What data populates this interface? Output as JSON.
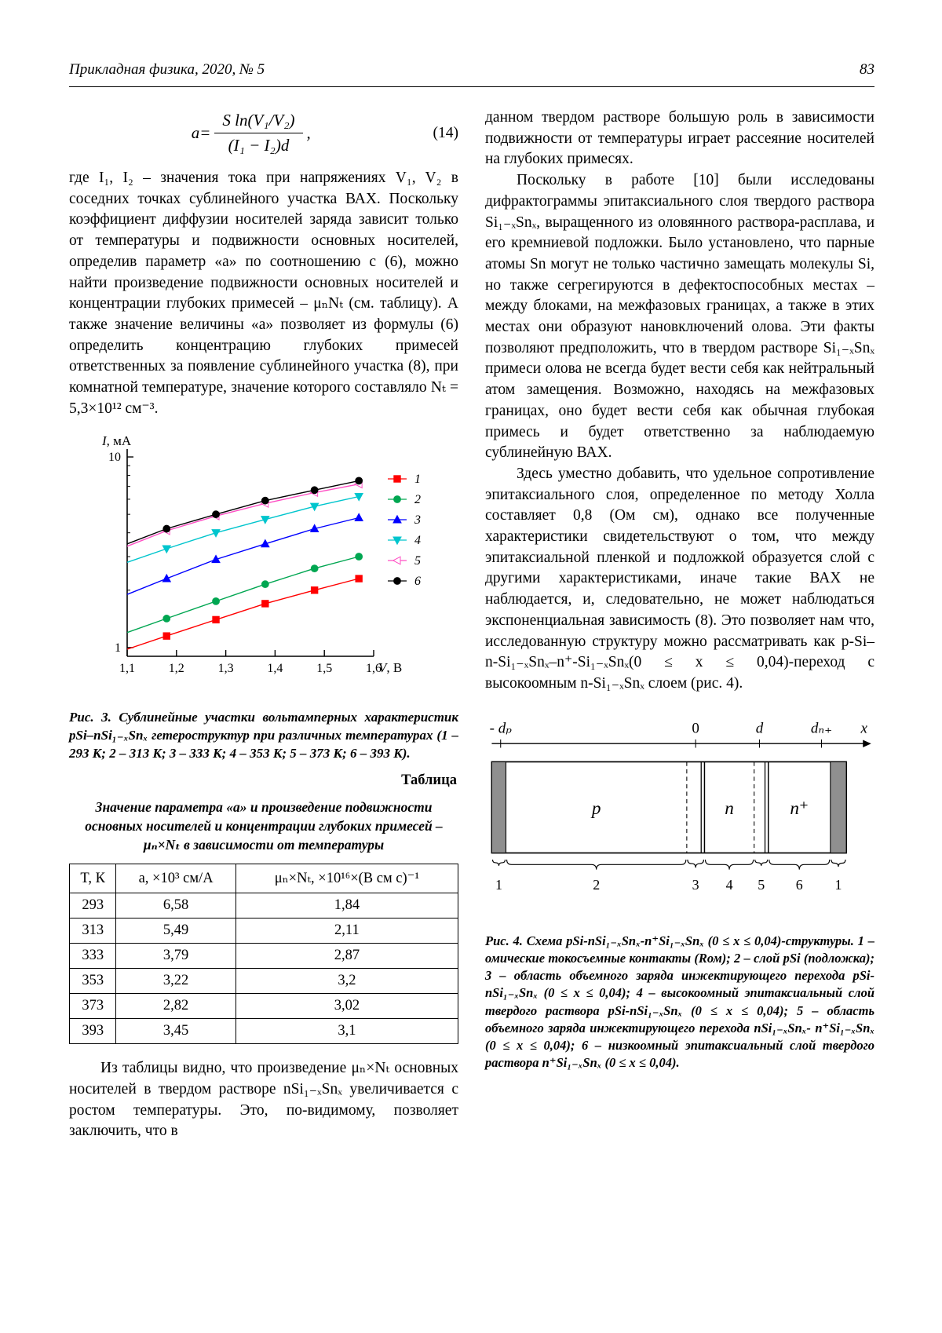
{
  "header": {
    "journal": "Прикладная физика, 2020, № 5",
    "page": "83"
  },
  "equation": {
    "lhs": "a",
    "eq": " = ",
    "numerator": "S ln(V₁/V₂)",
    "denominator": "(I₁ − I₂)d",
    "comma": ",",
    "number": "(14)"
  },
  "left_column": {
    "p1": "где I₁, I₂ – значения тока при напряжениях V₁, V₂ в соседних точках сублинейного участка ВАХ. Поскольку коэффициент диффузии носителей заряда зависит только от температуры и подвижности основных носителей, определив параметр «а» по соотношению с (6), можно найти произведение подвижности основных носителей и концентрации глубоких примесей – μₙNₜ (см. таблицу). А также значение величины «а» позволяет из формулы (6) определить концентрацию глубоких примесей ответственных за появление сублинейного участка (8), при комнатной температуре, значение которого составляло Nₜ = 5,3×10¹² см⁻³.",
    "fig3_caption": "Рис. 3. Сублинейные участки вольтамперных характеристик pSi–nSi₁₋ₓSnₓ гетероструктур при различных температурах (1 – 293 К; 2 – 313 К; 3 – 333 К; 4 – 353 К; 5 – 373 К; 6 – 393 К).",
    "table_label": "Таблица",
    "table_caption": "Значение параметра «а» и произведение подвижности основных носителей и концентрации глубоких примесей – μₙ×Nₜ в зависимости от температуры",
    "table": {
      "headers": [
        "T, К",
        "a, ×10³ см/А",
        "μₙ×Nₜ, ×10¹⁶×(В см с)⁻¹"
      ],
      "rows": [
        [
          "293",
          "6,58",
          "1,84"
        ],
        [
          "313",
          "5,49",
          "2,11"
        ],
        [
          "333",
          "3,79",
          "2,87"
        ],
        [
          "353",
          "3,22",
          "3,2"
        ],
        [
          "373",
          "2,82",
          "3,02"
        ],
        [
          "393",
          "3,45",
          "3,1"
        ]
      ]
    },
    "p2": "Из таблицы видно, что произведение μₙ×Nₜ основных носителей в твердом растворе nSi₁₋ₓSnₓ увеличивается с ростом температуры. Это, по-видимому, позволяет заключить, что в"
  },
  "right_column": {
    "p1": "данном твердом растворе большую роль в зависимости подвижности от температуры играет рассеяние носителей на глубоких примесях.",
    "p2": "Поскольку в работе [10] были исследованы дифрактограммы эпитаксиального слоя твердого раствора Si₁₋ₓSnₓ, выращенного из оловянного раствора-расплава, и его кремниевой подложки. Было установлено, что парные атомы Sn могут не только частично замещать молекулы Si, но также сегрегируются в дефектоспособных местах – между блоками, на межфазовых границах, а также в этих местах они образуют нановключений олова. Эти факты позволяют предположить, что в твердом растворе Si₁₋ₓSnₓ примеси олова не всегда будет вести себя как нейтральный атом замещения. Возможно, находясь на межфазовых границах, оно будет вести себя как обычная глубокая примесь и будет ответственно за наблюдаемую сублинейную ВАХ.",
    "p3": "Здесь уместно добавить, что удельное сопротивление эпитаксиального слоя, определенное по методу Холла составляет 0,8 (Ом см), однако все полученные характеристики свидетельствуют о том, что между эпитаксиальной пленкой и подложкой образуется слой с другими характеристиками, иначе такие ВАХ не наблюдается, и, следовательно, не может наблюдаться экспоненциальная зависимость (8). Это позволяет нам что, исследованную структуру можно рассматривать как p-Si–n-Si₁₋ₓSnₓ–n⁺-Si₁₋ₓSnₓ(0 ≤ x ≤ 0,04)-переход с высокоомным n-Si₁₋ₓSnₓ слоем (рис. 4).",
    "fig4_caption": "Рис. 4. Схема pSi-nSi₁₋ₓSnₓ-n⁺Si₁₋ₓSnₓ (0 ≤ x ≤ 0,04)-структуры. 1 – омические токосъемные контакты (Rом); 2 – слой pSi (подложка); 3 – область объемного заряда инжектирующего перехода pSi-nSi₁₋ₓSnₓ (0 ≤ x ≤ 0,04); 4 – высокоомный эпитаксиальный слой твердого раствора pSi-nSi₁₋ₓSnₓ (0 ≤ x ≤ 0,04); 5 – область объемного заряда инжектирующего перехода nSi₁₋ₓSnₓ- n⁺Si₁₋ₓSnₓ (0 ≤ x ≤ 0,04); 6 – низкоомный эпитаксиальный слой твердого раствора n⁺Si₁₋ₓSnₓ (0 ≤ x ≤ 0,04)."
  },
  "chart_data": {
    "type": "line",
    "title": "",
    "xlabel": "V, В",
    "ylabel": "I, мА",
    "yscale": "log",
    "xlim": [
      1.1,
      1.6
    ],
    "ylim": [
      0.9,
      11
    ],
    "x": [
      1.1,
      1.18,
      1.28,
      1.38,
      1.48,
      1.57
    ],
    "xticks": [
      "1,1",
      "1,2",
      "1,3",
      "1,4",
      "1,5",
      "1,6"
    ],
    "yticks": [
      "1",
      "10"
    ],
    "grid": false,
    "legend_position": "right",
    "series": [
      {
        "name": "1",
        "temperature": "293 К",
        "color": "#ff0000",
        "marker": "square",
        "fill": true,
        "values": [
          0.98,
          1.15,
          1.4,
          1.7,
          2.0,
          2.3
        ]
      },
      {
        "name": "2",
        "temperature": "313 К",
        "color": "#00a651",
        "marker": "circle",
        "fill": true,
        "values": [
          1.2,
          1.42,
          1.75,
          2.15,
          2.6,
          3.0
        ]
      },
      {
        "name": "3",
        "temperature": "333 К",
        "color": "#0000ff",
        "marker": "triangle-up",
        "fill": true,
        "values": [
          1.9,
          2.3,
          2.9,
          3.5,
          4.2,
          4.8
        ]
      },
      {
        "name": "4",
        "temperature": "353 К",
        "color": "#00c5cd",
        "marker": "triangle-down",
        "fill": true,
        "values": [
          2.8,
          3.3,
          4.0,
          4.7,
          5.5,
          6.2
        ]
      },
      {
        "name": "5",
        "temperature": "373 К",
        "color": "#ff4fc4",
        "marker": "triangle-left",
        "fill": false,
        "values": [
          3.4,
          4.1,
          4.9,
          5.7,
          6.5,
          7.2
        ]
      },
      {
        "name": "6",
        "temperature": "393 К",
        "color": "#000000",
        "marker": "circle",
        "fill": true,
        "values": [
          3.5,
          4.2,
          5.0,
          5.9,
          6.7,
          7.5
        ]
      }
    ]
  },
  "diagram": {
    "axis_labels": [
      {
        "text": "- dₚ",
        "x": 0.025,
        "tick": true
      },
      {
        "text": "0",
        "x": 0.575,
        "tick": true
      },
      {
        "text": "d",
        "x": 0.755,
        "tick": true
      },
      {
        "text": "dₙ₊",
        "x": 0.93,
        "tick": true
      },
      {
        "text": "x",
        "x": 1.05,
        "tick": false
      }
    ],
    "boundaries": [
      0,
      0.04,
      0.55,
      0.6,
      0.74,
      0.78,
      0.955,
      1
    ],
    "regions": [
      {
        "label": "p",
        "x": 0.295
      },
      {
        "label": "n",
        "x": 0.67
      },
      {
        "label": "n⁺",
        "x": 0.8675
      }
    ],
    "numbers": [
      "1",
      "2",
      "3",
      "4",
      "5",
      "6",
      "1"
    ]
  }
}
